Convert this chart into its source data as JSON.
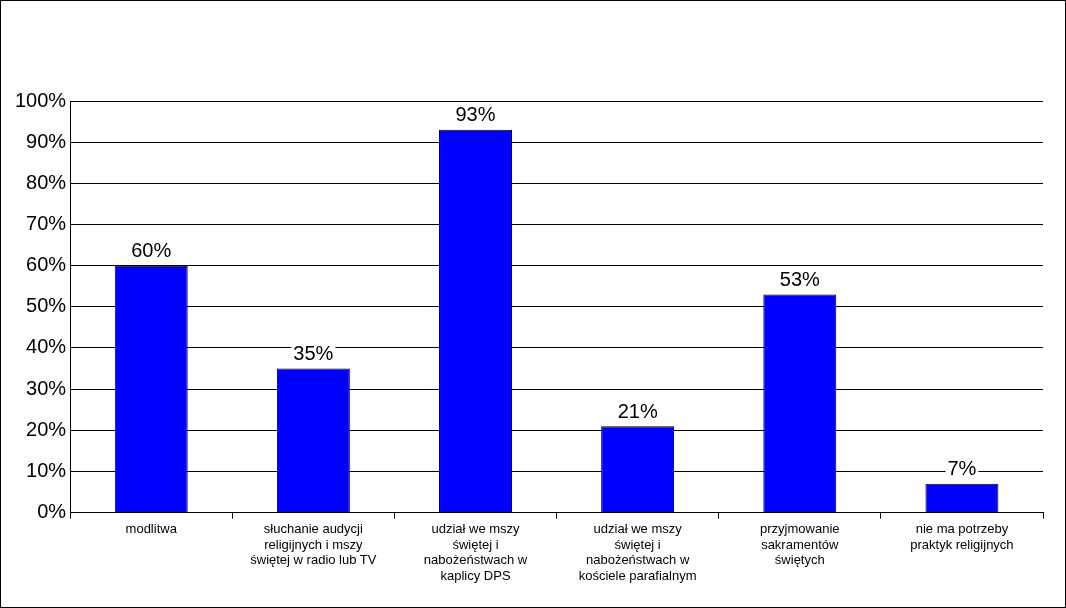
{
  "chart_data": {
    "type": "bar",
    "categories": [
      "modlitwa",
      "słuchanie audycji religijnych i mszy świętej w radio lub TV",
      "udział we mszy świętej i nabożeństwach w kaplicy DPS",
      "udział we mszy świętej i nabożeństwach w kościele parafialnym",
      "przyjmowanie sakramentów świętych",
      "nie ma potrzeby praktyk religijnych"
    ],
    "values": [
      60,
      35,
      93,
      21,
      53,
      7
    ],
    "value_labels": [
      "60%",
      "35%",
      "93%",
      "21%",
      "53%",
      "7%"
    ],
    "color": "#0000ff",
    "ylim": [
      0,
      100
    ],
    "yticks": [
      {
        "value": 0,
        "label": "0%"
      },
      {
        "value": 10,
        "label": "10%"
      },
      {
        "value": 20,
        "label": "20%"
      },
      {
        "value": 30,
        "label": "30%"
      },
      {
        "value": 40,
        "label": "40%"
      },
      {
        "value": 50,
        "label": "50%"
      },
      {
        "value": 60,
        "label": "60%"
      },
      {
        "value": 70,
        "label": "70%"
      },
      {
        "value": 80,
        "label": "80%"
      },
      {
        "value": 90,
        "label": "90%"
      },
      {
        "value": 100,
        "label": "100%"
      }
    ],
    "grid": "y",
    "legend": false
  }
}
